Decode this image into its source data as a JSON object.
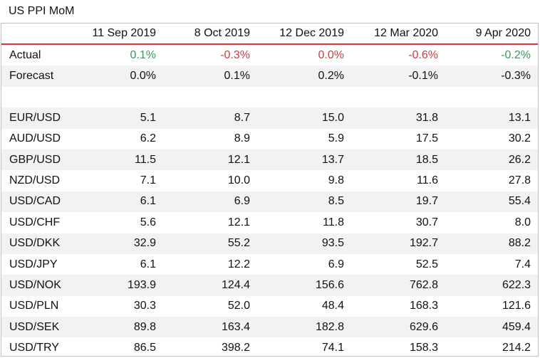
{
  "title": "US PPI MoM",
  "columns": [
    "",
    "11 Sep 2019",
    "8 Oct 2019",
    "12 Dec 2019",
    "12 Mar 2020",
    "9 Apr 2020"
  ],
  "colors": {
    "positive": "#2e9e5b",
    "negative": "#d9363e",
    "header_rule": "#d9363e"
  },
  "actual": {
    "label": "Actual",
    "values": [
      "0.1%",
      "-0.3%",
      "0.0%",
      "-0.6%",
      "-0.2%"
    ],
    "tones": [
      "pos",
      "neg",
      "neg",
      "neg",
      "pos"
    ]
  },
  "forecast": {
    "label": "Forecast",
    "values": [
      "0.0%",
      "0.1%",
      "0.2%",
      "-0.1%",
      "-0.3%"
    ]
  },
  "pairs": [
    {
      "label": "EUR/USD",
      "values": [
        "5.1",
        "8.7",
        "15.0",
        "31.8",
        "13.1"
      ]
    },
    {
      "label": "AUD/USD",
      "values": [
        "6.2",
        "8.9",
        "5.9",
        "17.5",
        "30.2"
      ]
    },
    {
      "label": "GBP/USD",
      "values": [
        "11.5",
        "12.1",
        "13.7",
        "18.5",
        "26.2"
      ]
    },
    {
      "label": "NZD/USD",
      "values": [
        "7.1",
        "10.0",
        "9.8",
        "11.6",
        "27.8"
      ]
    },
    {
      "label": "USD/CAD",
      "values": [
        "6.1",
        "6.9",
        "8.5",
        "19.7",
        "55.4"
      ]
    },
    {
      "label": "USD/CHF",
      "values": [
        "5.6",
        "12.1",
        "11.8",
        "30.7",
        "8.0"
      ]
    },
    {
      "label": "USD/DKK",
      "values": [
        "32.9",
        "55.2",
        "93.5",
        "192.7",
        "88.2"
      ]
    },
    {
      "label": "USD/JPY",
      "values": [
        "6.1",
        "12.2",
        "6.9",
        "52.5",
        "7.4"
      ]
    },
    {
      "label": "USD/NOK",
      "values": [
        "193.9",
        "124.4",
        "156.6",
        "762.8",
        "622.3"
      ]
    },
    {
      "label": "USD/PLN",
      "values": [
        "30.3",
        "52.0",
        "48.4",
        "168.3",
        "121.6"
      ]
    },
    {
      "label": "USD/SEK",
      "values": [
        "89.8",
        "163.4",
        "182.8",
        "629.6",
        "459.4"
      ]
    },
    {
      "label": "USD/TRY",
      "values": [
        "86.5",
        "398.2",
        "74.1",
        "158.3",
        "214.2"
      ]
    }
  ]
}
